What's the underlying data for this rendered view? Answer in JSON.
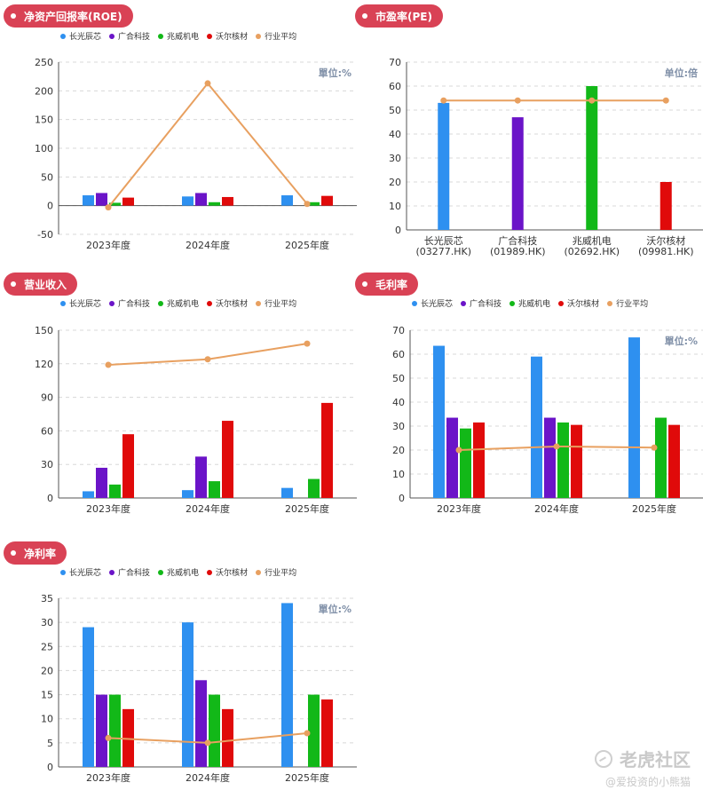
{
  "colors": {
    "pill": "#d94255",
    "series": [
      "#2e90f0",
      "#6b14c8",
      "#12b818",
      "#e00a0a",
      "#e8a060"
    ]
  },
  "watermark": {
    "brand": "老虎社区",
    "author": "@爱投资的小熊猫"
  },
  "chart_data": [
    {
      "id": "roe",
      "type": "bar",
      "title": "净资产回报率(ROE)",
      "unit": "單位:%",
      "categories": [
        "2023年度",
        "2024年度",
        "2025年度"
      ],
      "ylim": [
        -50,
        250
      ],
      "yticks": [
        -50,
        0,
        50,
        100,
        150,
        200,
        250
      ],
      "grid": true,
      "legend": "top",
      "series": [
        {
          "name": "长光辰芯",
          "values": [
            18,
            16,
            18
          ]
        },
        {
          "name": "广合科技",
          "values": [
            22,
            22,
            null
          ]
        },
        {
          "name": "兆威机电",
          "values": [
            5,
            6,
            6
          ]
        },
        {
          "name": "沃尔核材",
          "values": [
            14,
            15,
            17
          ]
        }
      ],
      "line": {
        "name": "行业平均",
        "values": [
          -3,
          213,
          3
        ]
      }
    },
    {
      "id": "pe",
      "type": "bar",
      "title": "市盈率(PE)",
      "unit": "单位:倍",
      "categories": [
        "长光辰芯|(03277.HK)",
        "广合科技|(01989.HK)",
        "兆威机电|(02692.HK)",
        "沃尔核材|(09981.HK)"
      ],
      "ylim": [
        0,
        70
      ],
      "yticks": [
        0,
        10,
        20,
        30,
        40,
        50,
        60,
        70
      ],
      "grid": true,
      "values": [
        53,
        47,
        60,
        20
      ],
      "bar_colors": [
        "#2e90f0",
        "#6b14c8",
        "#12b818",
        "#e00a0a"
      ],
      "line": {
        "name": "行业平均",
        "values": [
          54,
          54,
          54,
          54
        ]
      }
    },
    {
      "id": "revenue",
      "type": "bar",
      "title": "营业收入",
      "unit": "",
      "categories": [
        "2023年度",
        "2024年度",
        "2025年度"
      ],
      "ylim": [
        0,
        150
      ],
      "yticks": [
        0,
        30,
        60,
        90,
        120,
        150
      ],
      "grid": true,
      "legend": "top",
      "series": [
        {
          "name": "长光辰芯",
          "values": [
            6,
            7,
            9
          ]
        },
        {
          "name": "广合科技",
          "values": [
            27,
            37,
            null
          ]
        },
        {
          "name": "兆威机电",
          "values": [
            12,
            15,
            17
          ]
        },
        {
          "name": "沃尔核材",
          "values": [
            57,
            69,
            85
          ]
        }
      ],
      "line": {
        "name": "行业平均",
        "values": [
          119,
          124,
          138
        ]
      }
    },
    {
      "id": "gross_margin",
      "type": "bar",
      "title": "毛利率",
      "unit": "單位:%",
      "categories": [
        "2023年度",
        "2024年度",
        "2025年度"
      ],
      "ylim": [
        0,
        70
      ],
      "yticks": [
        0,
        10,
        20,
        30,
        40,
        50,
        60,
        70
      ],
      "grid": true,
      "legend": "top",
      "series": [
        {
          "name": "长光辰芯",
          "values": [
            63.5,
            59,
            67
          ]
        },
        {
          "name": "广合科技",
          "values": [
            33.5,
            33.5,
            null
          ]
        },
        {
          "name": "兆威机电",
          "values": [
            29,
            31.5,
            33.5
          ]
        },
        {
          "name": "沃尔核材",
          "values": [
            31.5,
            30.5,
            30.5
          ]
        }
      ],
      "line": {
        "name": "行业平均",
        "values": [
          20,
          21.5,
          21
        ]
      }
    },
    {
      "id": "net_margin",
      "type": "bar",
      "title": "净利率",
      "unit": "單位:%",
      "categories": [
        "2023年度",
        "2024年度",
        "2025年度"
      ],
      "ylim": [
        0,
        35
      ],
      "yticks": [
        0,
        5,
        10,
        15,
        20,
        25,
        30,
        35
      ],
      "grid": true,
      "legend": "top",
      "series": [
        {
          "name": "长光辰芯",
          "values": [
            29,
            30,
            34
          ]
        },
        {
          "name": "广合科技",
          "values": [
            15,
            18,
            null
          ]
        },
        {
          "name": "兆威机电",
          "values": [
            15,
            15,
            15
          ]
        },
        {
          "name": "沃尔核材",
          "values": [
            12,
            12,
            14
          ]
        }
      ],
      "line": {
        "name": "行业平均",
        "values": [
          6,
          5,
          7
        ]
      }
    }
  ]
}
